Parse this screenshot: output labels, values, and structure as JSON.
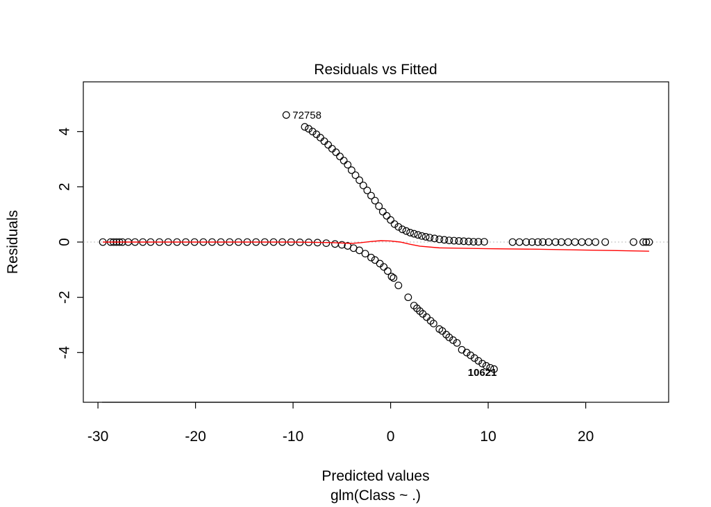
{
  "chart_data": {
    "type": "scatter",
    "title": "Residuals vs Fitted",
    "xlabel": "Predicted values",
    "xsublabel": "glm(Class ~ .)",
    "ylabel": "Residuals",
    "xlim": [
      -31.5,
      28.5
    ],
    "ylim": [
      -5.8,
      5.8
    ],
    "xticks": [
      -30,
      -20,
      -10,
      0,
      10,
      20
    ],
    "yticks": [
      -4,
      -2,
      0,
      2,
      4
    ],
    "xtick_labels": [
      "-30",
      "-20",
      "-10",
      "0",
      "10",
      "20"
    ],
    "ytick_labels": [
      "-4",
      "-2",
      "0",
      "2",
      "4"
    ],
    "grid": false,
    "reference_line": {
      "y": 0,
      "style": "dotted",
      "color": "#bbbbbb"
    },
    "colors": {
      "points": "#000000",
      "smoother": "#ff0000"
    },
    "series": [
      {
        "kind": "points",
        "points": [
          [
            -29.5,
            0
          ],
          [
            -28.7,
            0
          ],
          [
            -28.4,
            0
          ],
          [
            -28.1,
            0
          ],
          [
            -27.8,
            0
          ],
          [
            -27.5,
            0
          ],
          [
            -26.9,
            0
          ],
          [
            -26.2,
            0
          ],
          [
            -25.4,
            0
          ],
          [
            -24.6,
            0
          ],
          [
            -23.7,
            0
          ],
          [
            -22.8,
            0
          ],
          [
            -21.9,
            0
          ],
          [
            -21.0,
            0
          ],
          [
            -20.1,
            0
          ],
          [
            -19.2,
            0
          ],
          [
            -18.3,
            0
          ],
          [
            -17.4,
            0
          ],
          [
            -16.5,
            0
          ],
          [
            -15.6,
            0
          ],
          [
            -14.7,
            0
          ],
          [
            -13.8,
            0
          ],
          [
            -12.9,
            0
          ],
          [
            -12.0,
            0
          ],
          [
            -11.1,
            0
          ],
          [
            -10.2,
            0
          ],
          [
            -9.3,
            -0.01
          ],
          [
            -8.4,
            -0.01
          ],
          [
            -7.5,
            -0.02
          ],
          [
            -6.6,
            -0.04
          ],
          [
            -5.7,
            -0.07
          ],
          [
            -5.0,
            -0.1
          ],
          [
            -4.4,
            -0.14
          ],
          [
            -3.8,
            -0.22
          ],
          [
            -3.2,
            -0.3
          ],
          [
            -2.6,
            -0.42
          ],
          [
            -2.0,
            -0.56
          ],
          [
            -1.6,
            -0.65
          ],
          [
            -1.1,
            -0.78
          ],
          [
            -0.7,
            -0.9
          ],
          [
            -0.3,
            -1.05
          ],
          [
            0.1,
            -1.25
          ],
          [
            0.3,
            -1.3
          ],
          [
            0.8,
            -1.57
          ],
          [
            1.8,
            -2.0
          ],
          [
            2.4,
            -2.3
          ],
          [
            2.7,
            -2.4
          ],
          [
            3.0,
            -2.5
          ],
          [
            3.3,
            -2.6
          ],
          [
            3.7,
            -2.72
          ],
          [
            4.1,
            -2.85
          ],
          [
            4.4,
            -2.95
          ],
          [
            5.0,
            -3.15
          ],
          [
            5.3,
            -3.22
          ],
          [
            5.7,
            -3.35
          ],
          [
            6.0,
            -3.45
          ],
          [
            6.4,
            -3.55
          ],
          [
            6.8,
            -3.65
          ],
          [
            7.3,
            -3.9
          ],
          [
            7.8,
            -4.0
          ],
          [
            8.2,
            -4.1
          ],
          [
            8.6,
            -4.2
          ],
          [
            9.0,
            -4.3
          ],
          [
            9.4,
            -4.4
          ],
          [
            9.8,
            -4.48
          ],
          [
            10.2,
            -4.55
          ],
          [
            10.6,
            -4.6
          ],
          [
            -10.7,
            4.6
          ],
          [
            -8.8,
            4.17
          ],
          [
            -8.4,
            4.1
          ],
          [
            -8.0,
            4.0
          ],
          [
            -7.6,
            3.9
          ],
          [
            -7.2,
            3.78
          ],
          [
            -6.8,
            3.65
          ],
          [
            -6.4,
            3.52
          ],
          [
            -6.0,
            3.38
          ],
          [
            -5.6,
            3.25
          ],
          [
            -5.2,
            3.1
          ],
          [
            -4.8,
            2.95
          ],
          [
            -4.4,
            2.8
          ],
          [
            -4.0,
            2.6
          ],
          [
            -3.6,
            2.42
          ],
          [
            -3.2,
            2.24
          ],
          [
            -2.8,
            2.05
          ],
          [
            -2.4,
            1.87
          ],
          [
            -2.0,
            1.68
          ],
          [
            -1.6,
            1.5
          ],
          [
            -1.2,
            1.3
          ],
          [
            -0.8,
            1.1
          ],
          [
            -0.4,
            0.95
          ],
          [
            0.0,
            0.8
          ],
          [
            0.4,
            0.65
          ],
          [
            0.8,
            0.55
          ],
          [
            1.2,
            0.46
          ],
          [
            1.6,
            0.4
          ],
          [
            2.0,
            0.34
          ],
          [
            2.4,
            0.3
          ],
          [
            2.8,
            0.26
          ],
          [
            3.2,
            0.22
          ],
          [
            3.6,
            0.19
          ],
          [
            4.0,
            0.16
          ],
          [
            4.5,
            0.13
          ],
          [
            5.0,
            0.1
          ],
          [
            5.5,
            0.08
          ],
          [
            6.0,
            0.06
          ],
          [
            6.5,
            0.05
          ],
          [
            7.0,
            0.04
          ],
          [
            7.5,
            0.03
          ],
          [
            8.0,
            0.02
          ],
          [
            8.5,
            0.01
          ],
          [
            9.0,
            0.01
          ],
          [
            9.6,
            0.01
          ],
          [
            12.5,
            0
          ],
          [
            13.2,
            0
          ],
          [
            13.9,
            0
          ],
          [
            14.5,
            0
          ],
          [
            15.1,
            0
          ],
          [
            15.6,
            0
          ],
          [
            16.2,
            0
          ],
          [
            16.9,
            0
          ],
          [
            17.5,
            0
          ],
          [
            18.2,
            0
          ],
          [
            18.9,
            0
          ],
          [
            19.6,
            0
          ],
          [
            20.3,
            0
          ],
          [
            21.0,
            0
          ],
          [
            22.0,
            0
          ],
          [
            24.9,
            0
          ],
          [
            25.9,
            0
          ],
          [
            26.2,
            0
          ],
          [
            26.5,
            0
          ]
        ]
      },
      {
        "kind": "smoother",
        "points": [
          [
            -29.5,
            0
          ],
          [
            -20,
            0
          ],
          [
            -10,
            0
          ],
          [
            -6,
            -0.02
          ],
          [
            -4,
            -0.05
          ],
          [
            -3,
            -0.02
          ],
          [
            -2,
            0.02
          ],
          [
            -1,
            0.05
          ],
          [
            0,
            0.04
          ],
          [
            1,
            0.0
          ],
          [
            2,
            -0.08
          ],
          [
            3,
            -0.15
          ],
          [
            5,
            -0.21
          ],
          [
            10,
            -0.24
          ],
          [
            15,
            -0.26
          ],
          [
            20,
            -0.29
          ],
          [
            26.5,
            -0.33
          ]
        ]
      }
    ],
    "annotations": [
      {
        "text": "72758",
        "x": -10.7,
        "y": 4.6
      },
      {
        "text": "10621",
        "x": 10.6,
        "y": -4.6
      }
    ]
  }
}
